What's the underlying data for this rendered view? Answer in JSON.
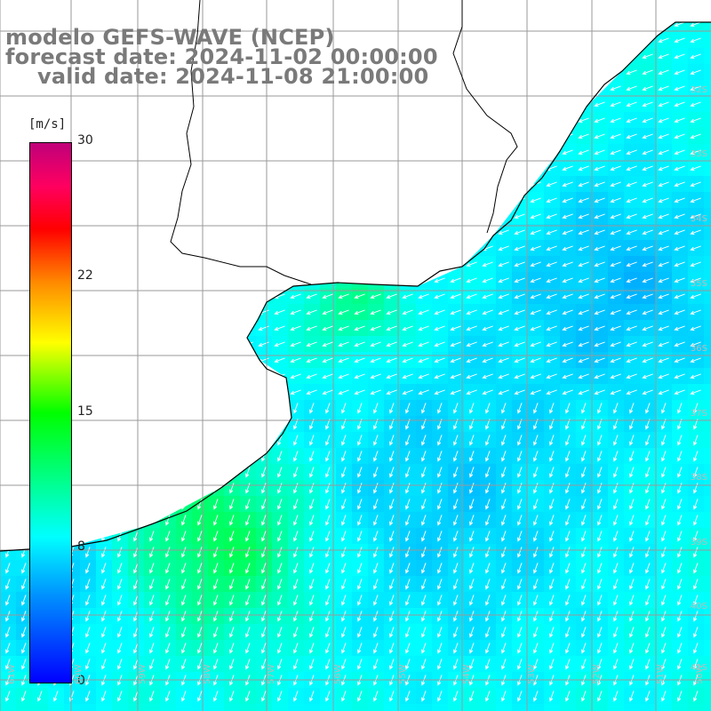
{
  "title": {
    "line1": "modelo GEFS-WAVE (NCEP)",
    "line2": "forecast date: 2024-11-02 00:00:00",
    "line3": "valid date: 2024-11-08 21:00:00"
  },
  "colorbar": {
    "unit": "[m/s]",
    "ticks": [
      "30",
      "22",
      "15",
      "8",
      "0"
    ],
    "tick_values": [
      30,
      22,
      15,
      8,
      0
    ],
    "range": [
      0,
      30
    ],
    "colors": [
      "#0000ff",
      "#0090ff",
      "#00ffff",
      "#00ff90",
      "#00ff00",
      "#ffff00",
      "#ff8c00",
      "#ff0000",
      "#c0007a"
    ]
  },
  "axes": {
    "lon_labels": [
      "61W",
      "60W",
      "59W",
      "58W",
      "57W",
      "56W",
      "55W",
      "54W",
      "53W",
      "52W",
      "51W",
      "50W"
    ],
    "lat_labels": [
      "32S",
      "33S",
      "34S",
      "35S",
      "36S",
      "37S",
      "38S",
      "39S",
      "40S",
      "41S"
    ]
  },
  "colors": {
    "land": "#ffffff",
    "coast": "#000000",
    "grid": "#9a9a9a",
    "arrows": "#ffffff",
    "title": "#7a7a7a"
  },
  "field": {
    "variable": "wind speed",
    "arrow_direction": "from north-east toward south-west"
  }
}
